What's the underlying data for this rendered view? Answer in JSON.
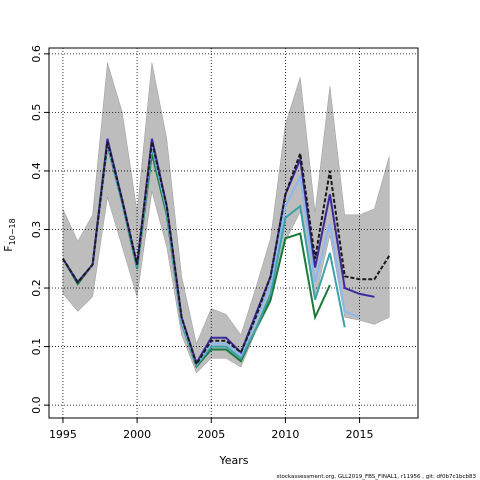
{
  "chart_data": {
    "type": "line",
    "xlabel": "Years",
    "ylabel": "F",
    "ylabel_sub": "10−18",
    "footer": "stockassessment.org, GLL2019_FBS_FINAL1, r11956 , git: df0b7c1bcb83",
    "x": [
      1995,
      1996,
      1997,
      1998,
      1999,
      2000,
      2001,
      2002,
      2003,
      2004,
      2005,
      2006,
      2007,
      2008,
      2009,
      2010,
      2011,
      2012,
      2013,
      2014,
      2015,
      2016,
      2017
    ],
    "xlim": [
      1994.06,
      2018.94
    ],
    "xticks": [
      1995,
      2000,
      2005,
      2010,
      2015
    ],
    "ylim": [
      -0.022,
      0.61
    ],
    "yticks": [
      {
        "value": 0,
        "label": "0.0"
      },
      0.1,
      0.2,
      0.3,
      0.4,
      0.5,
      0.6
    ],
    "grid": true,
    "band": {
      "color": "#bdbdbd",
      "upper": [
        0.335,
        0.28,
        0.325,
        0.585,
        0.5,
        0.33,
        0.585,
        0.455,
        0.22,
        0.105,
        0.165,
        0.155,
        0.12,
        0.2,
        0.285,
        0.48,
        0.56,
        0.33,
        0.545,
        0.325,
        0.325,
        0.335,
        0.425
      ],
      "lower": [
        0.19,
        0.16,
        0.185,
        0.355,
        0.27,
        0.185,
        0.365,
        0.27,
        0.12,
        0.055,
        0.08,
        0.08,
        0.065,
        0.125,
        0.175,
        0.28,
        0.33,
        0.18,
        0.29,
        0.15,
        0.145,
        0.138,
        0.15
      ]
    },
    "series": [
      {
        "color": "#1a1a1a",
        "dash": true,
        "values": [
          0.25,
          0.21,
          0.24,
          0.45,
          0.35,
          0.24,
          0.45,
          0.34,
          0.15,
          0.07,
          0.11,
          0.11,
          0.09,
          0.15,
          0.22,
          0.36,
          0.43,
          0.25,
          0.4,
          0.22,
          0.215,
          0.215,
          0.255
        ]
      },
      {
        "color": "#3b2a9e",
        "values": [
          0.25,
          0.21,
          0.24,
          0.455,
          0.35,
          0.24,
          0.455,
          0.34,
          0.15,
          0.072,
          0.115,
          0.115,
          0.09,
          0.155,
          0.22,
          0.36,
          0.42,
          0.235,
          0.36,
          0.2,
          0.19,
          0.185,
          null
        ]
      },
      {
        "color": "#8db8ee",
        "values": [
          0.25,
          0.21,
          0.24,
          0.45,
          0.35,
          0.24,
          0.445,
          0.335,
          0.145,
          0.07,
          0.105,
          0.105,
          0.085,
          0.145,
          0.205,
          0.34,
          0.39,
          0.21,
          0.31,
          0.16,
          0.15,
          null,
          null
        ]
      },
      {
        "color": "#3aa3a8",
        "values": [
          0.25,
          0.21,
          0.24,
          0.445,
          0.345,
          0.235,
          0.44,
          0.33,
          0.14,
          0.068,
          0.1,
          0.1,
          0.08,
          0.13,
          0.19,
          0.32,
          0.34,
          0.18,
          0.26,
          0.133,
          null,
          null,
          null
        ]
      },
      {
        "color": "#1a7a3a",
        "values": [
          0.25,
          0.207,
          0.24,
          0.445,
          0.345,
          0.233,
          0.43,
          0.325,
          0.14,
          0.066,
          0.095,
          0.095,
          0.075,
          0.13,
          0.18,
          0.285,
          0.293,
          0.15,
          0.205,
          null,
          null,
          null,
          null
        ]
      }
    ]
  }
}
